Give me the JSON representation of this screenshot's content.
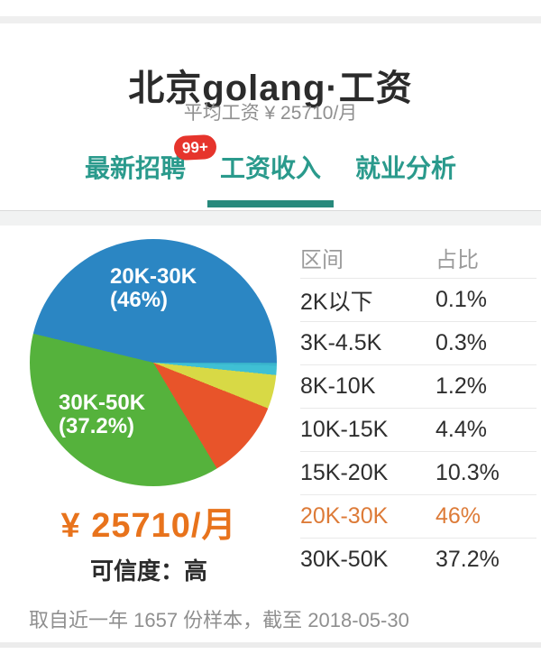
{
  "header": {
    "title": "北京golang·工资",
    "subtitle": "平均工资 ¥ 25710/月"
  },
  "tabs": {
    "items": [
      {
        "label": "最新招聘",
        "badge": "99+",
        "active": false
      },
      {
        "label": "工资收入",
        "badge": null,
        "active": true
      },
      {
        "label": "就业分析",
        "badge": null,
        "active": false
      }
    ]
  },
  "chart_data": {
    "type": "pie",
    "title": "北京golang工资收入区间占比",
    "unit": "%",
    "legend_position": "none",
    "slices": [
      {
        "name": "2K以下",
        "value": 0.1,
        "color": "#35a9c6"
      },
      {
        "name": "3K-4.5K",
        "value": 0.3,
        "color": "#39b6ce"
      },
      {
        "name": "8K-10K",
        "value": 1.2,
        "color": "#3fc0d4"
      },
      {
        "name": "10K-15K",
        "value": 4.4,
        "color": "#d8d945"
      },
      {
        "name": "15K-20K",
        "value": 10.3,
        "color": "#e8542a"
      },
      {
        "name": "20K-30K",
        "value": 46,
        "color": "#2b86c3"
      },
      {
        "name": "30K-50K",
        "value": 37.2,
        "color": "#55b23c"
      }
    ],
    "pie_labels": [
      {
        "line1": "20K-30K",
        "line2": "(46%)"
      },
      {
        "line1": "30K-50K",
        "line2": "(37.2%)"
      }
    ],
    "start_angle_deg": 90,
    "draw_order": "ascending-clockwise-from-3-oclock"
  },
  "salary_table": {
    "headers": {
      "range": "区间",
      "share": "占比"
    },
    "rows": [
      {
        "range": "2K以下",
        "share": "0.1%",
        "highlight": false
      },
      {
        "range": "3K-4.5K",
        "share": "0.3%",
        "highlight": false
      },
      {
        "range": "8K-10K",
        "share": "1.2%",
        "highlight": false
      },
      {
        "range": "10K-15K",
        "share": "4.4%",
        "highlight": false
      },
      {
        "range": "15K-20K",
        "share": "10.3%",
        "highlight": false
      },
      {
        "range": "20K-30K",
        "share": "46%",
        "highlight": true
      },
      {
        "range": "30K-50K",
        "share": "37.2%",
        "highlight": false
      }
    ]
  },
  "summary": {
    "average_salary": "¥ 25710/月",
    "confidence": "可信度：高"
  },
  "footer": {
    "note": "取自近一年 1657 份样本，截至 2018-05-30"
  },
  "colors": {
    "teal": "#2a9a8c",
    "teal-dark": "#27897c",
    "red": "#e6342c",
    "orange": "#e8731c",
    "highlight": "#dd7b38",
    "text-dark": "#2b2b2b",
    "text-gray": "#8f8f8f",
    "divider": "#e9e9e9",
    "band": "#f1f2f2"
  }
}
